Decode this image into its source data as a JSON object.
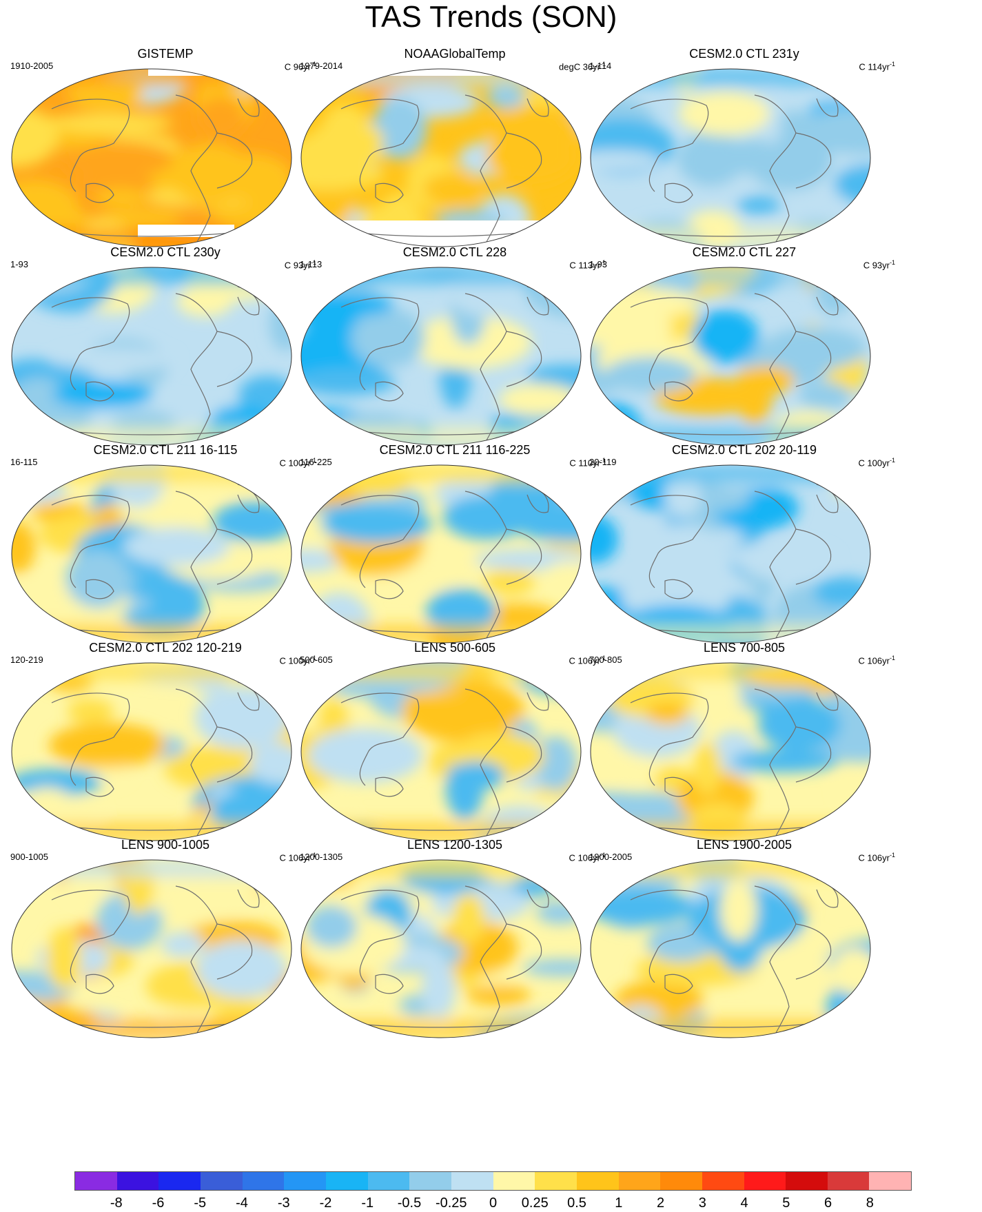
{
  "title": "TAS Trends (SON)",
  "panels": [
    {
      "title": "GISTEMP",
      "period": "1910-2005",
      "units": "C 96yr",
      "scheme": "warm",
      "missing": "gis"
    },
    {
      "title": "NOAAGlobalTemp",
      "period": "1979-2014",
      "units": "degC 36yr",
      "scheme": "noaa",
      "missing": "noaa"
    },
    {
      "title": "CESM2.0 CTL 231y",
      "period": "1-114",
      "units": "C 114yr",
      "scheme": "cool",
      "missing": ""
    },
    {
      "title": "CESM2.0 CTL 230y",
      "period": "1-93",
      "units": "C 93yr",
      "scheme": "cool",
      "missing": ""
    },
    {
      "title": "CESM2.0 CTL 228",
      "period": "1-113",
      "units": "C 113yr",
      "scheme": "cool",
      "missing": ""
    },
    {
      "title": "CESM2.0 CTL 227",
      "period": "1-93",
      "units": "C 93yr",
      "scheme": "mixcool",
      "missing": ""
    },
    {
      "title": "CESM2.0 CTL 211 16-115",
      "period": "16-115",
      "units": "C 100yr",
      "scheme": "mix",
      "missing": ""
    },
    {
      "title": "CESM2.0 CTL 211 116-225",
      "period": "116-225",
      "units": "C 110yr",
      "scheme": "mix",
      "missing": ""
    },
    {
      "title": "CESM2.0 CTL 202 20-119",
      "period": "20-119",
      "units": "C 100yr",
      "scheme": "cool",
      "missing": ""
    },
    {
      "title": "CESM2.0 CTL 202 120-219",
      "period": "120-219",
      "units": "C 100yr",
      "scheme": "mix",
      "missing": ""
    },
    {
      "title": "LENS 500-605",
      "period": "500-605",
      "units": "C 106yr",
      "scheme": "mix",
      "missing": ""
    },
    {
      "title": "LENS 700-805",
      "period": "700-805",
      "units": "C 106yr",
      "scheme": "mix",
      "missing": ""
    },
    {
      "title": "LENS 900-1005",
      "period": "900-1005",
      "units": "C 106yr",
      "scheme": "mixwarm",
      "missing": ""
    },
    {
      "title": "LENS 1200-1305",
      "period": "1200-1305",
      "units": "C 106yr",
      "scheme": "mix",
      "missing": ""
    },
    {
      "title": "LENS 1900-2005",
      "period": "1900-2005",
      "units": "C 106yr",
      "scheme": "mix",
      "missing": ""
    }
  ],
  "units_superscript": "-1",
  "colorbar": {
    "colors": [
      "#8a2be2",
      "#3b12e0",
      "#1a28f0",
      "#3a5ed8",
      "#2f75e8",
      "#2496f5",
      "#19b4f5",
      "#4cbaf0",
      "#93cdea",
      "#bfe0f2",
      "#fff7a8",
      "#ffe04a",
      "#ffc41a",
      "#ffa51a",
      "#ff8a0a",
      "#ff4a12",
      "#ff1a1a",
      "#d40c0c",
      "#d93a3a",
      "#ffb3b3"
    ],
    "labels": [
      "-8",
      "-6",
      "-5",
      "-4",
      "-3",
      "-2",
      "-1",
      "-0.5",
      "-0.25",
      "0",
      "0.25",
      "0.5",
      "1",
      "2",
      "3",
      "4",
      "5",
      "6",
      "8"
    ]
  }
}
